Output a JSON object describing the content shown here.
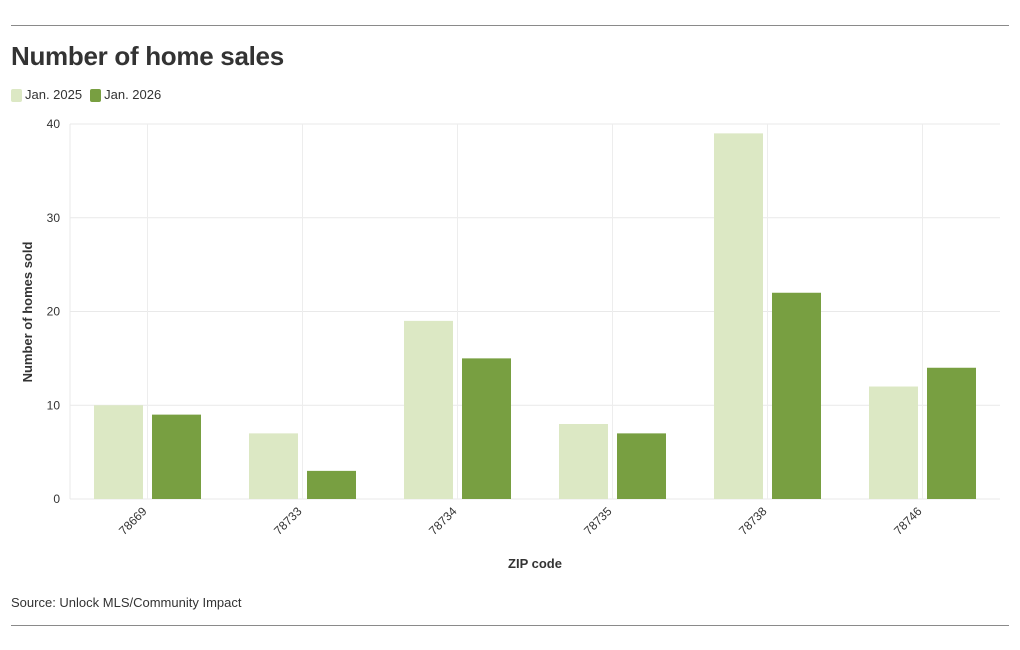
{
  "title": "Number of home sales",
  "source": "Source: Unlock MLS/Community Impact",
  "chart_data": {
    "type": "bar",
    "title": "Number of home sales",
    "xlabel": "ZIP code",
    "ylabel": "Number of homes sold",
    "categories": [
      "78669",
      "78733",
      "78734",
      "78735",
      "78738",
      "78746"
    ],
    "series": [
      {
        "name": "Jan. 2025",
        "color": "#dce8c4",
        "values": [
          10,
          7,
          19,
          8,
          39,
          12
        ]
      },
      {
        "name": "Jan. 2026",
        "color": "#789f41",
        "values": [
          9,
          3,
          15,
          7,
          22,
          14
        ]
      }
    ],
    "ylim": [
      0,
      40
    ],
    "yticks": [
      0,
      10,
      20,
      30,
      40
    ],
    "grid": true,
    "legend_position": "top-left"
  }
}
